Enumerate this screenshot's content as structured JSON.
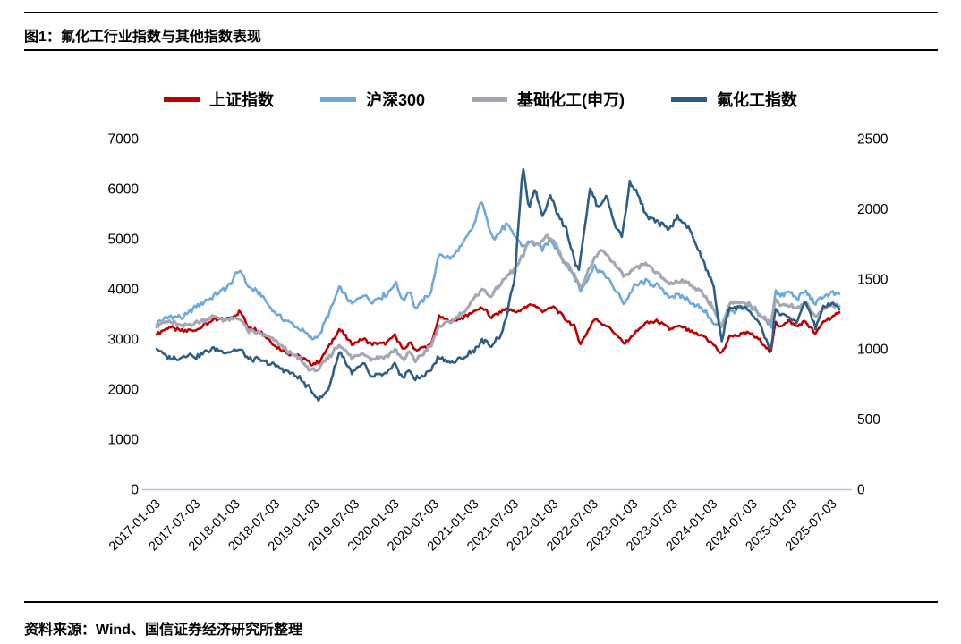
{
  "figure": {
    "title": "图1：氟化工行业指数与其他指数表现",
    "source": "资料来源：Wind、国信证券经济研究所整理"
  },
  "chart_data": {
    "type": "line",
    "title": "图1：氟化工行业指数与其他指数表现",
    "legend_position": "top",
    "grid": false,
    "axis_line_color": "#a9c7e6",
    "x_axis": {
      "min": 2017.0,
      "max": 2025.58,
      "tick_values": [
        2017.0,
        2017.5,
        2018.0,
        2018.5,
        2019.0,
        2019.5,
        2020.0,
        2020.5,
        2021.0,
        2021.5,
        2022.0,
        2022.5,
        2023.0,
        2023.5,
        2024.0,
        2024.5,
        2025.0,
        2025.5
      ],
      "tick_labels": [
        "2017-01-03",
        "2017-07-03",
        "2018-01-03",
        "2018-07-03",
        "2019-01-03",
        "2019-07-03",
        "2020-01-03",
        "2020-07-03",
        "2021-01-03",
        "2021-07-03",
        "2022-01-03",
        "2022-07-03",
        "2023-01-03",
        "2023-07-03",
        "2024-01-03",
        "2024-07-03",
        "2025-01-03",
        "2025-07-03"
      ]
    },
    "y_axis_left": {
      "min": 0,
      "max": 7000,
      "ticks": [
        0,
        1000,
        2000,
        3000,
        4000,
        5000,
        6000,
        7000
      ]
    },
    "y_axis_right": {
      "min": 0,
      "max": 2500,
      "ticks": [
        0,
        500,
        1000,
        1500,
        2000,
        2500
      ]
    },
    "series": [
      {
        "name": "上证指数",
        "color": "#c00000",
        "axis": "left",
        "points": [
          [
            2017.0,
            3105
          ],
          [
            2017.17,
            3240
          ],
          [
            2017.33,
            3150
          ],
          [
            2017.5,
            3190
          ],
          [
            2017.7,
            3370
          ],
          [
            2017.9,
            3400
          ],
          [
            2018.05,
            3550
          ],
          [
            2018.15,
            3250
          ],
          [
            2018.3,
            3160
          ],
          [
            2018.5,
            2850
          ],
          [
            2018.65,
            2720
          ],
          [
            2018.8,
            2650
          ],
          [
            2018.95,
            2500
          ],
          [
            2019.05,
            2550
          ],
          [
            2019.3,
            3200
          ],
          [
            2019.45,
            2900
          ],
          [
            2019.6,
            3000
          ],
          [
            2019.7,
            2900
          ],
          [
            2019.9,
            2920
          ],
          [
            2020.0,
            3090
          ],
          [
            2020.1,
            2750
          ],
          [
            2020.18,
            2950
          ],
          [
            2020.25,
            2780
          ],
          [
            2020.45,
            2880
          ],
          [
            2020.55,
            3450
          ],
          [
            2020.7,
            3350
          ],
          [
            2020.85,
            3420
          ],
          [
            2021.0,
            3570
          ],
          [
            2021.1,
            3620
          ],
          [
            2021.2,
            3430
          ],
          [
            2021.4,
            3600
          ],
          [
            2021.55,
            3530
          ],
          [
            2021.7,
            3700
          ],
          [
            2021.85,
            3560
          ],
          [
            2022.0,
            3640
          ],
          [
            2022.1,
            3450
          ],
          [
            2022.25,
            3250
          ],
          [
            2022.33,
            2890
          ],
          [
            2022.5,
            3400
          ],
          [
            2022.65,
            3280
          ],
          [
            2022.8,
            3050
          ],
          [
            2022.88,
            2900
          ],
          [
            2023.0,
            3100
          ],
          [
            2023.15,
            3320
          ],
          [
            2023.3,
            3350
          ],
          [
            2023.45,
            3200
          ],
          [
            2023.6,
            3250
          ],
          [
            2023.75,
            3110
          ],
          [
            2023.9,
            3030
          ],
          [
            2024.0,
            2880
          ],
          [
            2024.1,
            2700
          ],
          [
            2024.2,
            3050
          ],
          [
            2024.35,
            3090
          ],
          [
            2024.45,
            3120
          ],
          [
            2024.6,
            2950
          ],
          [
            2024.72,
            2720
          ],
          [
            2024.78,
            3350
          ],
          [
            2024.83,
            3250
          ],
          [
            2024.95,
            3350
          ],
          [
            2025.05,
            3250
          ],
          [
            2025.15,
            3350
          ],
          [
            2025.28,
            3100
          ],
          [
            2025.38,
            3350
          ],
          [
            2025.5,
            3450
          ],
          [
            2025.58,
            3500
          ]
        ]
      },
      {
        "name": "沪深300",
        "color": "#6fa8dc",
        "axis": "left",
        "points": [
          [
            2017.0,
            3320
          ],
          [
            2017.17,
            3450
          ],
          [
            2017.33,
            3420
          ],
          [
            2017.5,
            3650
          ],
          [
            2017.7,
            3850
          ],
          [
            2017.9,
            4050
          ],
          [
            2018.05,
            4400
          ],
          [
            2018.15,
            4050
          ],
          [
            2018.3,
            3900
          ],
          [
            2018.5,
            3500
          ],
          [
            2018.65,
            3350
          ],
          [
            2018.8,
            3200
          ],
          [
            2018.95,
            3000
          ],
          [
            2019.05,
            3080
          ],
          [
            2019.3,
            4030
          ],
          [
            2019.45,
            3680
          ],
          [
            2019.6,
            3900
          ],
          [
            2019.7,
            3750
          ],
          [
            2019.9,
            3900
          ],
          [
            2020.0,
            4150
          ],
          [
            2020.1,
            3750
          ],
          [
            2020.18,
            4000
          ],
          [
            2020.25,
            3600
          ],
          [
            2020.45,
            3950
          ],
          [
            2020.55,
            4700
          ],
          [
            2020.7,
            4600
          ],
          [
            2020.85,
            4900
          ],
          [
            2021.0,
            5300
          ],
          [
            2021.08,
            5800
          ],
          [
            2021.15,
            5350
          ],
          [
            2021.25,
            5000
          ],
          [
            2021.4,
            5300
          ],
          [
            2021.5,
            5050
          ],
          [
            2021.6,
            4850
          ],
          [
            2021.7,
            4950
          ],
          [
            2021.85,
            4800
          ],
          [
            2021.95,
            5000
          ],
          [
            2022.1,
            4600
          ],
          [
            2022.25,
            4250
          ],
          [
            2022.33,
            3950
          ],
          [
            2022.5,
            4450
          ],
          [
            2022.65,
            4250
          ],
          [
            2022.8,
            3900
          ],
          [
            2022.88,
            3700
          ],
          [
            2023.0,
            4050
          ],
          [
            2023.15,
            4150
          ],
          [
            2023.3,
            4050
          ],
          [
            2023.45,
            3850
          ],
          [
            2023.6,
            3850
          ],
          [
            2023.75,
            3700
          ],
          [
            2023.9,
            3550
          ],
          [
            2024.0,
            3300
          ],
          [
            2024.1,
            3250
          ],
          [
            2024.2,
            3550
          ],
          [
            2024.35,
            3600
          ],
          [
            2024.45,
            3650
          ],
          [
            2024.6,
            3450
          ],
          [
            2024.72,
            3250
          ],
          [
            2024.78,
            4000
          ],
          [
            2024.83,
            3850
          ],
          [
            2024.95,
            3950
          ],
          [
            2025.05,
            3800
          ],
          [
            2025.15,
            3950
          ],
          [
            2025.28,
            3700
          ],
          [
            2025.38,
            3850
          ],
          [
            2025.5,
            3920
          ],
          [
            2025.58,
            3880
          ]
        ]
      },
      {
        "name": "基础化工(申万)",
        "color": "#a3a9b4",
        "axis": "left",
        "points": [
          [
            2017.0,
            3280
          ],
          [
            2017.17,
            3350
          ],
          [
            2017.33,
            3250
          ],
          [
            2017.5,
            3330
          ],
          [
            2017.7,
            3450
          ],
          [
            2017.9,
            3380
          ],
          [
            2018.05,
            3420
          ],
          [
            2018.15,
            3150
          ],
          [
            2018.3,
            3120
          ],
          [
            2018.5,
            2950
          ],
          [
            2018.65,
            2750
          ],
          [
            2018.8,
            2600
          ],
          [
            2018.95,
            2350
          ],
          [
            2019.05,
            2420
          ],
          [
            2019.3,
            2900
          ],
          [
            2019.45,
            2620
          ],
          [
            2019.6,
            2720
          ],
          [
            2019.7,
            2600
          ],
          [
            2019.9,
            2660
          ],
          [
            2020.0,
            2800
          ],
          [
            2020.1,
            2570
          ],
          [
            2020.18,
            2750
          ],
          [
            2020.25,
            2570
          ],
          [
            2020.45,
            2850
          ],
          [
            2020.55,
            3250
          ],
          [
            2020.7,
            3350
          ],
          [
            2020.85,
            3520
          ],
          [
            2021.0,
            3800
          ],
          [
            2021.08,
            4000
          ],
          [
            2021.2,
            3850
          ],
          [
            2021.4,
            4250
          ],
          [
            2021.5,
            4400
          ],
          [
            2021.6,
            4650
          ],
          [
            2021.7,
            5000
          ],
          [
            2021.8,
            4850
          ],
          [
            2021.9,
            5080
          ],
          [
            2022.0,
            4950
          ],
          [
            2022.1,
            4600
          ],
          [
            2022.25,
            4300
          ],
          [
            2022.33,
            4000
          ],
          [
            2022.5,
            4600
          ],
          [
            2022.6,
            4800
          ],
          [
            2022.75,
            4500
          ],
          [
            2022.88,
            4250
          ],
          [
            2023.0,
            4380
          ],
          [
            2023.15,
            4500
          ],
          [
            2023.3,
            4300
          ],
          [
            2023.45,
            4100
          ],
          [
            2023.6,
            4180
          ],
          [
            2023.75,
            4050
          ],
          [
            2023.9,
            3850
          ],
          [
            2024.0,
            3600
          ],
          [
            2024.1,
            3250
          ],
          [
            2024.2,
            3700
          ],
          [
            2024.35,
            3720
          ],
          [
            2024.45,
            3700
          ],
          [
            2024.6,
            3480
          ],
          [
            2024.72,
            3300
          ],
          [
            2024.78,
            3800
          ],
          [
            2024.83,
            3700
          ],
          [
            2024.95,
            3680
          ],
          [
            2025.05,
            3600
          ],
          [
            2025.15,
            3720
          ],
          [
            2025.28,
            3450
          ],
          [
            2025.38,
            3620
          ],
          [
            2025.5,
            3680
          ],
          [
            2025.58,
            3640
          ]
        ]
      },
      {
        "name": "氟化工指数",
        "color": "#2d5f86",
        "axis": "right",
        "points": [
          [
            2017.0,
            1010
          ],
          [
            2017.1,
            950
          ],
          [
            2017.25,
            930
          ],
          [
            2017.4,
            965
          ],
          [
            2017.5,
            940
          ],
          [
            2017.7,
            1000
          ],
          [
            2017.9,
            975
          ],
          [
            2018.05,
            1000
          ],
          [
            2018.15,
            930
          ],
          [
            2018.3,
            920
          ],
          [
            2018.5,
            880
          ],
          [
            2018.65,
            840
          ],
          [
            2018.8,
            790
          ],
          [
            2018.95,
            700
          ],
          [
            2019.05,
            640
          ],
          [
            2019.15,
            700
          ],
          [
            2019.3,
            990
          ],
          [
            2019.45,
            830
          ],
          [
            2019.6,
            890
          ],
          [
            2019.7,
            800
          ],
          [
            2019.9,
            830
          ],
          [
            2020.0,
            890
          ],
          [
            2020.1,
            790
          ],
          [
            2020.18,
            860
          ],
          [
            2020.25,
            780
          ],
          [
            2020.45,
            850
          ],
          [
            2020.55,
            950
          ],
          [
            2020.7,
            900
          ],
          [
            2020.85,
            935
          ],
          [
            2021.0,
            1000
          ],
          [
            2021.1,
            1060
          ],
          [
            2021.2,
            1020
          ],
          [
            2021.35,
            1120
          ],
          [
            2021.5,
            1500
          ],
          [
            2021.6,
            2300
          ],
          [
            2021.68,
            2000
          ],
          [
            2021.75,
            2150
          ],
          [
            2021.85,
            1950
          ],
          [
            2021.95,
            2100
          ],
          [
            2022.05,
            1950
          ],
          [
            2022.15,
            1850
          ],
          [
            2022.3,
            1550
          ],
          [
            2022.45,
            2150
          ],
          [
            2022.55,
            2000
          ],
          [
            2022.65,
            2100
          ],
          [
            2022.75,
            1900
          ],
          [
            2022.85,
            1800
          ],
          [
            2022.95,
            2200
          ],
          [
            2023.05,
            2100
          ],
          [
            2023.15,
            1950
          ],
          [
            2023.3,
            1900
          ],
          [
            2023.45,
            1850
          ],
          [
            2023.55,
            1950
          ],
          [
            2023.7,
            1850
          ],
          [
            2023.85,
            1650
          ],
          [
            2024.0,
            1450
          ],
          [
            2024.1,
            1050
          ],
          [
            2024.2,
            1300
          ],
          [
            2024.35,
            1300
          ],
          [
            2024.45,
            1280
          ],
          [
            2024.6,
            1150
          ],
          [
            2024.72,
            980
          ],
          [
            2024.78,
            1300
          ],
          [
            2024.83,
            1250
          ],
          [
            2024.95,
            1230
          ],
          [
            2025.05,
            1180
          ],
          [
            2025.15,
            1350
          ],
          [
            2025.28,
            1150
          ],
          [
            2025.38,
            1300
          ],
          [
            2025.5,
            1320
          ],
          [
            2025.58,
            1290
          ]
        ]
      }
    ]
  }
}
